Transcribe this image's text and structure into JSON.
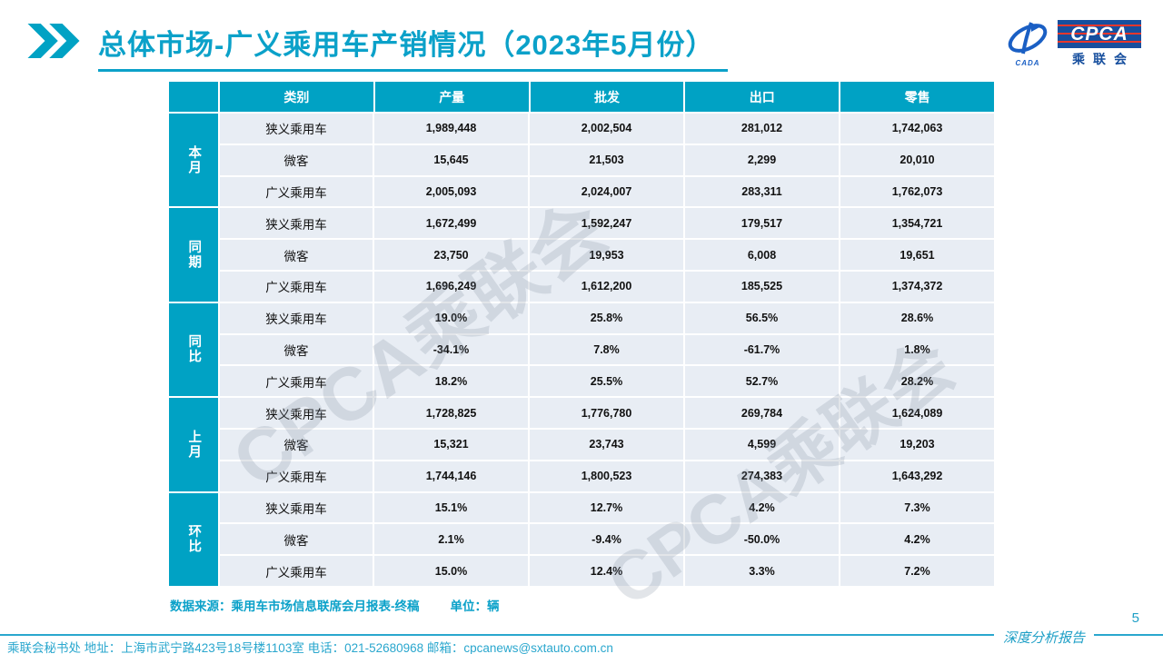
{
  "slide": {
    "title": "总体市场-广义乘用车产销情况（2023年5月份）",
    "watermark": "CPCA乘联会",
    "page_number": "5",
    "report_label": "深度分析报告"
  },
  "logo": {
    "emblem_text": "CADA",
    "cpca_text": "CPCA",
    "cn_text": "乘联会"
  },
  "notes": {
    "source": "数据来源：乘用车市场信息联席会月报表-终稿",
    "unit": "单位：辆"
  },
  "footer": {
    "text": "乘联会秘书处  地址：上海市武宁路423号18号楼1103室 电话：021-52680968  邮箱：cpcanews@sxtauto.com.cn"
  },
  "colors": {
    "accent_teal": "#00a2c4",
    "title_teal": "#0ba1c9",
    "cell_bg": "#e8edf4",
    "logo_navy": "#174f9e",
    "logo_red": "#e8372c"
  },
  "chart_data": {
    "type": "table",
    "columns": [
      "类别",
      "产量",
      "批发",
      "出口",
      "零售"
    ],
    "row_groups": [
      {
        "label": "本月",
        "rows": [
          {
            "category": "狭义乘用车",
            "values": [
              "1,989,448",
              "2,002,504",
              "281,012",
              "1,742,063"
            ]
          },
          {
            "category": "微客",
            "values": [
              "15,645",
              "21,503",
              "2,299",
              "20,010"
            ]
          },
          {
            "category": "广义乘用车",
            "values": [
              "2,005,093",
              "2,024,007",
              "283,311",
              "1,762,073"
            ]
          }
        ]
      },
      {
        "label": "同期",
        "rows": [
          {
            "category": "狭义乘用车",
            "values": [
              "1,672,499",
              "1,592,247",
              "179,517",
              "1,354,721"
            ]
          },
          {
            "category": "微客",
            "values": [
              "23,750",
              "19,953",
              "6,008",
              "19,651"
            ]
          },
          {
            "category": "广义乘用车",
            "values": [
              "1,696,249",
              "1,612,200",
              "185,525",
              "1,374,372"
            ]
          }
        ]
      },
      {
        "label": "同比",
        "rows": [
          {
            "category": "狭义乘用车",
            "values": [
              "19.0%",
              "25.8%",
              "56.5%",
              "28.6%"
            ]
          },
          {
            "category": "微客",
            "values": [
              "-34.1%",
              "7.8%",
              "-61.7%",
              "1.8%"
            ]
          },
          {
            "category": "广义乘用车",
            "values": [
              "18.2%",
              "25.5%",
              "52.7%",
              "28.2%"
            ]
          }
        ]
      },
      {
        "label": "上月",
        "rows": [
          {
            "category": "狭义乘用车",
            "values": [
              "1,728,825",
              "1,776,780",
              "269,784",
              "1,624,089"
            ]
          },
          {
            "category": "微客",
            "values": [
              "15,321",
              "23,743",
              "4,599",
              "19,203"
            ]
          },
          {
            "category": "广义乘用车",
            "values": [
              "1,744,146",
              "1,800,523",
              "274,383",
              "1,643,292"
            ]
          }
        ]
      },
      {
        "label": "环比",
        "rows": [
          {
            "category": "狭义乘用车",
            "values": [
              "15.1%",
              "12.7%",
              "4.2%",
              "7.3%"
            ]
          },
          {
            "category": "微客",
            "values": [
              "2.1%",
              "-9.4%",
              "-50.0%",
              "4.2%"
            ]
          },
          {
            "category": "广义乘用车",
            "values": [
              "15.0%",
              "12.4%",
              "3.3%",
              "7.2%"
            ]
          }
        ]
      }
    ]
  }
}
